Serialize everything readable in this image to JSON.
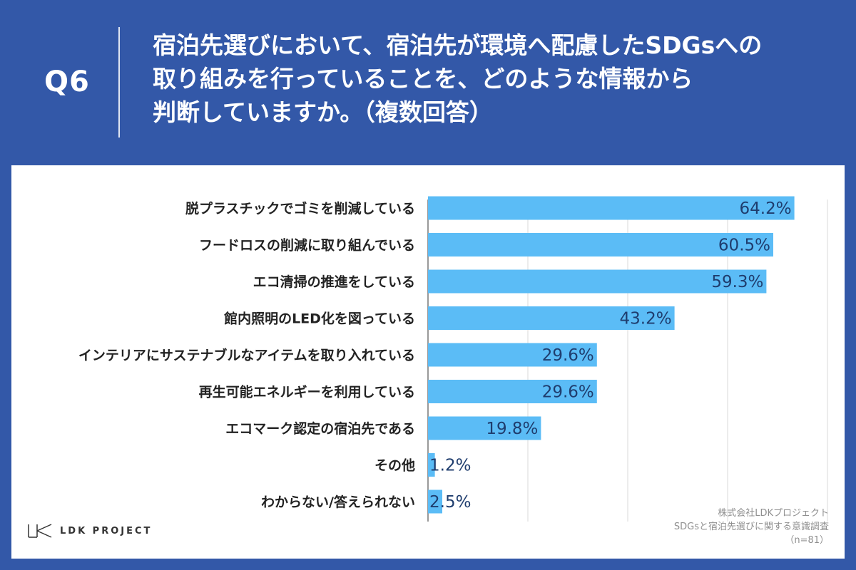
{
  "header": {
    "q_label": "Q6",
    "question_lines": [
      "宿泊先選びにおいて、宿泊先が環境へ配慮したSDGsへの",
      "取り組みを行っていることを、どのような情報から",
      "判断していますか。（複数回答）"
    ]
  },
  "chart_data": {
    "type": "bar",
    "orientation": "horizontal",
    "categories": [
      "脱プラスチックでゴミを削減している",
      "フードロスの削減に取り組んでいる",
      "エコ清掃の推進をしている",
      "館内照明のLED化を図っている",
      "インテリアにサステナブルなアイテムを取り入れている",
      "再生可能エネルギーを利用している",
      "エコマーク認定の宿泊先である",
      "その他",
      "わからない/答えられない"
    ],
    "values": [
      64.2,
      60.5,
      59.3,
      43.2,
      29.6,
      29.6,
      19.8,
      1.2,
      2.5
    ],
    "value_labels": [
      "64.2%",
      "60.5%",
      "59.3%",
      "43.2%",
      "29.6%",
      "29.6%",
      "19.8%",
      "1.2%",
      "2.5%"
    ],
    "xlim": [
      0,
      70
    ],
    "grid": true,
    "bar_color": "#5bbcf6"
  },
  "source": {
    "company": "株式会社LDKプロジェクト",
    "survey": "SDGsと宿泊先選びに関する意識調査",
    "sample": "（n=81）"
  },
  "logo": {
    "text": "LDK PROJECT"
  }
}
